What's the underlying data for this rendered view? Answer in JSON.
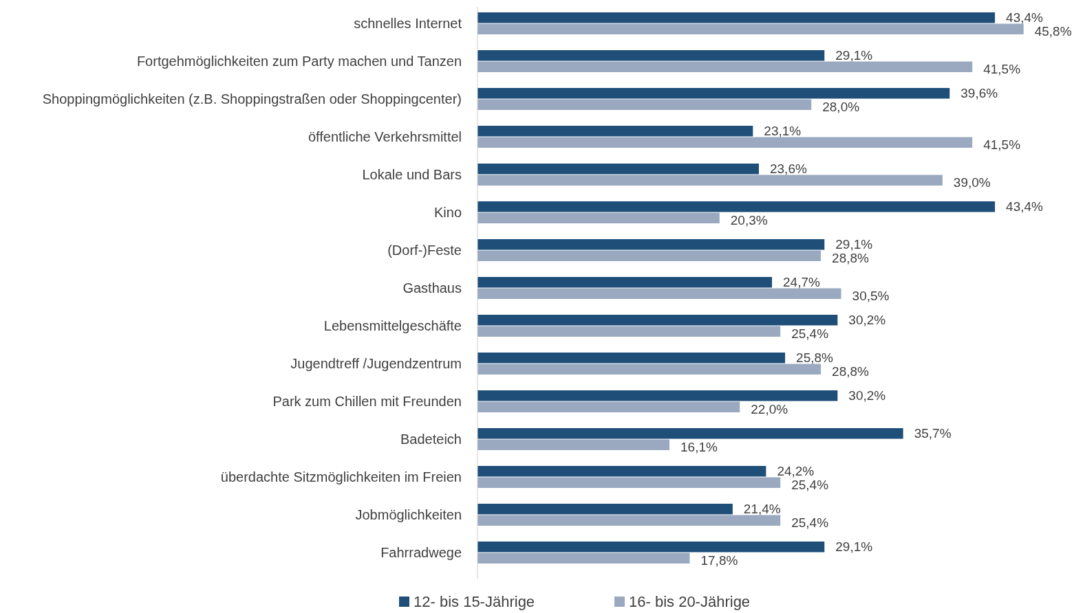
{
  "chart_data": {
    "type": "bar",
    "orientation": "horizontal",
    "legend": "bottom",
    "categories": [
      "schnelles Internet",
      "Fortgehmöglichkeiten zum Party machen und Tanzen",
      "Shoppingmöglichkeiten (z.B. Shoppingstraßen oder Shoppingcenter)",
      "öffentliche Verkehrsmittel",
      "Lokale und Bars",
      "Kino",
      "(Dorf-)Feste",
      "Gasthaus",
      "Lebensmittelgeschäfte",
      "Jugendtreff /Jugendzentrum",
      "Park zum Chillen mit Freunden",
      "Badeteich",
      "überdachte Sitzmöglichkeiten im Freien",
      "Jobmöglichkeiten",
      "Fahrradwege"
    ],
    "series": [
      {
        "name": "12- bis 15-Jährige",
        "color": "#1f4e79",
        "values": [
          43.4,
          29.1,
          39.6,
          23.1,
          23.6,
          43.4,
          29.1,
          24.7,
          30.2,
          25.8,
          30.2,
          35.7,
          24.2,
          21.4,
          29.1
        ],
        "value_labels": [
          "43,4%",
          "29,1%",
          "39,6%",
          "23,1%",
          "23,6%",
          "43,4%",
          "29,1%",
          "24,7%",
          "30,2%",
          "25,8%",
          "30,2%",
          "35,7%",
          "24,2%",
          "21,4%",
          "29,1%"
        ]
      },
      {
        "name": "16- bis 20-Jährige",
        "color": "#9aa9c0",
        "values": [
          45.8,
          41.5,
          28.0,
          41.5,
          39.0,
          20.3,
          28.8,
          30.5,
          25.4,
          28.8,
          22.0,
          16.1,
          25.4,
          25.4,
          17.8
        ],
        "value_labels": [
          "45,8%",
          "41,5%",
          "28,0%",
          "41,5%",
          "39,0%",
          "20,3%",
          "28,8%",
          "30,5%",
          "25,4%",
          "28,8%",
          "22,0%",
          "16,1%",
          "25,4%",
          "25,4%",
          "17,8%"
        ]
      }
    ]
  }
}
